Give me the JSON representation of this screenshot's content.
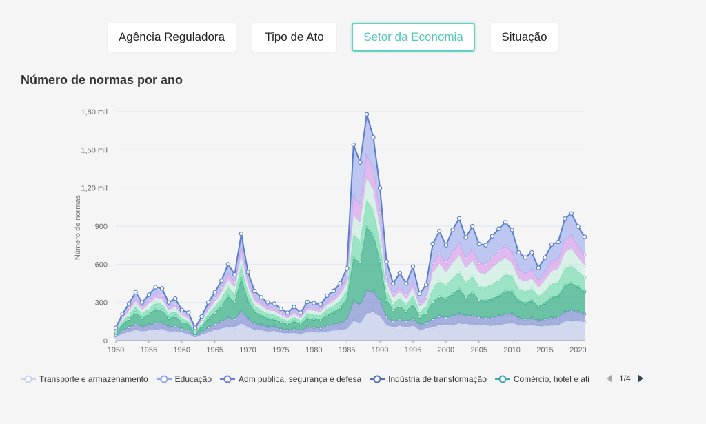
{
  "tabs": [
    {
      "label": "Agência Reguladora",
      "active": false
    },
    {
      "label": "Tipo de Ato",
      "active": false
    },
    {
      "label": "Setor da Economia",
      "active": true
    },
    {
      "label": "Situação",
      "active": false
    }
  ],
  "chart_title": "Número de normas por ano",
  "legend": {
    "items": [
      {
        "label": "Transporte e armazenamento",
        "color": "#c9d3f0"
      },
      {
        "label": "Educação",
        "color": "#8fa6e8"
      },
      {
        "label": "Adm publica, segurança e defesa",
        "color": "#6f7fcf"
      },
      {
        "label": "Indústria de transformação",
        "color": "#4f6fb8"
      },
      {
        "label": "Comércio, hotel e ati",
        "color": "#39a9b0"
      }
    ],
    "page": "1/4"
  },
  "chart_data": {
    "type": "area",
    "stacked": true,
    "ylabel": "Número de normas",
    "xlabel": "",
    "xlim": [
      1950,
      2021
    ],
    "ylim": [
      0,
      1800
    ],
    "yticks": [
      0,
      300,
      600,
      900,
      1200,
      1500,
      1800
    ],
    "ytick_labels": [
      "0",
      "300",
      "600",
      "900",
      "1,20 mil",
      "1,50 mil",
      "1,80 mil"
    ],
    "xticks": [
      1950,
      1955,
      1960,
      1965,
      1970,
      1975,
      1980,
      1985,
      1990,
      1995,
      2000,
      2005,
      2010,
      2015,
      2020
    ],
    "grid": true,
    "legend_position": "bottom",
    "years": [
      1950,
      1951,
      1952,
      1953,
      1954,
      1955,
      1956,
      1957,
      1958,
      1959,
      1960,
      1961,
      1962,
      1963,
      1964,
      1965,
      1966,
      1967,
      1968,
      1969,
      1970,
      1971,
      1972,
      1973,
      1974,
      1975,
      1976,
      1977,
      1978,
      1979,
      1980,
      1981,
      1982,
      1983,
      1984,
      1985,
      1986,
      1987,
      1988,
      1989,
      1990,
      1991,
      1992,
      1993,
      1994,
      1995,
      1996,
      1997,
      1998,
      1999,
      2000,
      2001,
      2002,
      2003,
      2004,
      2005,
      2006,
      2007,
      2008,
      2009,
      2010,
      2011,
      2012,
      2013,
      2014,
      2015,
      2016,
      2017,
      2018,
      2019,
      2020,
      2021
    ],
    "total": [
      100,
      210,
      290,
      380,
      300,
      360,
      420,
      410,
      300,
      330,
      240,
      220,
      100,
      190,
      300,
      380,
      470,
      600,
      520,
      840,
      540,
      390,
      340,
      300,
      290,
      250,
      220,
      270,
      220,
      310,
      300,
      290,
      360,
      400,
      460,
      580,
      1540,
      1400,
      1780,
      1600,
      1200,
      610,
      440,
      520,
      440,
      570,
      360,
      430,
      760,
      860,
      750,
      870,
      960,
      810,
      900,
      760,
      750,
      820,
      880,
      930,
      870,
      680,
      640,
      680,
      560,
      640,
      740,
      760,
      940,
      980,
      880,
      800
    ],
    "layers": [
      {
        "color": "#c5cee9",
        "fractions": [
          0.28,
          0.26,
          0.24,
          0.22,
          0.24,
          0.22,
          0.2,
          0.22,
          0.24,
          0.22,
          0.26,
          0.24,
          0.26,
          0.24,
          0.22,
          0.22,
          0.2,
          0.18,
          0.2,
          0.16,
          0.2,
          0.22,
          0.24,
          0.24,
          0.26,
          0.24,
          0.26,
          0.22,
          0.24,
          0.22,
          0.22,
          0.22,
          0.2,
          0.2,
          0.18,
          0.16,
          0.1,
          0.1,
          0.12,
          0.14,
          0.16,
          0.2,
          0.24,
          0.22,
          0.24,
          0.2,
          0.24,
          0.22,
          0.14,
          0.14,
          0.16,
          0.14,
          0.14,
          0.16,
          0.14,
          0.16,
          0.16,
          0.14,
          0.14,
          0.14,
          0.16,
          0.18,
          0.18,
          0.18,
          0.2,
          0.18,
          0.16,
          0.16,
          0.16,
          0.16,
          0.18,
          0.18
        ]
      },
      {
        "color": "#8a97d6",
        "fractions": [
          0.1,
          0.12,
          0.12,
          0.12,
          0.12,
          0.12,
          0.12,
          0.12,
          0.12,
          0.12,
          0.12,
          0.12,
          0.12,
          0.12,
          0.12,
          0.12,
          0.12,
          0.12,
          0.12,
          0.12,
          0.12,
          0.12,
          0.12,
          0.12,
          0.12,
          0.12,
          0.12,
          0.12,
          0.12,
          0.12,
          0.12,
          0.12,
          0.12,
          0.12,
          0.12,
          0.12,
          0.1,
          0.1,
          0.1,
          0.1,
          0.1,
          0.1,
          0.1,
          0.1,
          0.1,
          0.1,
          0.1,
          0.1,
          0.08,
          0.08,
          0.08,
          0.08,
          0.08,
          0.08,
          0.08,
          0.08,
          0.08,
          0.08,
          0.08,
          0.08,
          0.08,
          0.08,
          0.08,
          0.08,
          0.08,
          0.08,
          0.08,
          0.08,
          0.08,
          0.08,
          0.08,
          0.08
        ]
      },
      {
        "color": "#3db08a",
        "fractions": [
          0.2,
          0.22,
          0.22,
          0.24,
          0.22,
          0.24,
          0.26,
          0.24,
          0.22,
          0.24,
          0.22,
          0.22,
          0.2,
          0.22,
          0.24,
          0.24,
          0.26,
          0.28,
          0.26,
          0.3,
          0.26,
          0.24,
          0.22,
          0.22,
          0.2,
          0.22,
          0.2,
          0.22,
          0.22,
          0.22,
          0.22,
          0.22,
          0.24,
          0.24,
          0.26,
          0.28,
          0.22,
          0.24,
          0.28,
          0.28,
          0.26,
          0.22,
          0.2,
          0.2,
          0.18,
          0.2,
          0.18,
          0.18,
          0.18,
          0.18,
          0.2,
          0.2,
          0.2,
          0.18,
          0.2,
          0.18,
          0.18,
          0.18,
          0.18,
          0.2,
          0.2,
          0.2,
          0.2,
          0.2,
          0.2,
          0.2,
          0.22,
          0.22,
          0.22,
          0.22,
          0.22,
          0.22
        ]
      },
      {
        "color": "#7fdcb4",
        "fractions": [
          0.12,
          0.12,
          0.12,
          0.12,
          0.12,
          0.12,
          0.12,
          0.12,
          0.12,
          0.12,
          0.12,
          0.12,
          0.12,
          0.12,
          0.12,
          0.12,
          0.12,
          0.12,
          0.12,
          0.12,
          0.12,
          0.12,
          0.12,
          0.12,
          0.12,
          0.12,
          0.12,
          0.12,
          0.12,
          0.12,
          0.12,
          0.12,
          0.12,
          0.12,
          0.12,
          0.12,
          0.12,
          0.12,
          0.12,
          0.12,
          0.12,
          0.12,
          0.12,
          0.12,
          0.12,
          0.12,
          0.12,
          0.12,
          0.14,
          0.14,
          0.14,
          0.14,
          0.14,
          0.14,
          0.14,
          0.14,
          0.14,
          0.14,
          0.14,
          0.14,
          0.14,
          0.14,
          0.14,
          0.14,
          0.14,
          0.14,
          0.14,
          0.14,
          0.14,
          0.14,
          0.14,
          0.14
        ]
      },
      {
        "color": "#cfeee4",
        "fractions": [
          0.1,
          0.1,
          0.1,
          0.1,
          0.1,
          0.1,
          0.1,
          0.1,
          0.1,
          0.1,
          0.1,
          0.1,
          0.1,
          0.1,
          0.1,
          0.1,
          0.1,
          0.1,
          0.1,
          0.1,
          0.1,
          0.1,
          0.1,
          0.1,
          0.1,
          0.1,
          0.1,
          0.1,
          0.1,
          0.1,
          0.1,
          0.1,
          0.1,
          0.1,
          0.1,
          0.1,
          0.1,
          0.1,
          0.1,
          0.1,
          0.1,
          0.1,
          0.1,
          0.1,
          0.1,
          0.1,
          0.1,
          0.1,
          0.16,
          0.16,
          0.14,
          0.14,
          0.14,
          0.14,
          0.14,
          0.14,
          0.14,
          0.16,
          0.16,
          0.14,
          0.12,
          0.12,
          0.12,
          0.12,
          0.12,
          0.14,
          0.14,
          0.14,
          0.14,
          0.14,
          0.12,
          0.12
        ]
      },
      {
        "color": "#d8a6ec",
        "fractions": [
          0.07,
          0.07,
          0.08,
          0.08,
          0.08,
          0.08,
          0.08,
          0.08,
          0.08,
          0.08,
          0.08,
          0.08,
          0.08,
          0.08,
          0.08,
          0.08,
          0.08,
          0.08,
          0.08,
          0.08,
          0.08,
          0.08,
          0.08,
          0.08,
          0.08,
          0.08,
          0.08,
          0.08,
          0.08,
          0.08,
          0.08,
          0.08,
          0.08,
          0.08,
          0.08,
          0.08,
          0.1,
          0.1,
          0.1,
          0.1,
          0.1,
          0.08,
          0.08,
          0.08,
          0.08,
          0.08,
          0.08,
          0.08,
          0.1,
          0.1,
          0.1,
          0.1,
          0.1,
          0.1,
          0.1,
          0.1,
          0.1,
          0.1,
          0.1,
          0.1,
          0.1,
          0.1,
          0.1,
          0.1,
          0.1,
          0.1,
          0.1,
          0.1,
          0.1,
          0.1,
          0.1,
          0.1
        ]
      },
      {
        "color": "#a9b7f0",
        "fractions": [
          0.13,
          0.11,
          0.12,
          0.12,
          0.12,
          0.12,
          0.12,
          0.12,
          0.12,
          0.12,
          0.1,
          0.12,
          0.12,
          0.12,
          0.12,
          0.12,
          0.12,
          0.12,
          0.12,
          0.12,
          0.12,
          0.12,
          0.12,
          0.12,
          0.12,
          0.12,
          0.12,
          0.12,
          0.12,
          0.12,
          0.12,
          0.12,
          0.12,
          0.12,
          0.12,
          0.12,
          0.26,
          0.24,
          0.18,
          0.16,
          0.16,
          0.2,
          0.18,
          0.2,
          0.2,
          0.22,
          0.2,
          0.22,
          0.2,
          0.2,
          0.18,
          0.2,
          0.2,
          0.2,
          0.2,
          0.2,
          0.2,
          0.2,
          0.2,
          0.2,
          0.2,
          0.2,
          0.2,
          0.2,
          0.18,
          0.18,
          0.18,
          0.18,
          0.18,
          0.18,
          0.18,
          0.18
        ]
      }
    ]
  }
}
